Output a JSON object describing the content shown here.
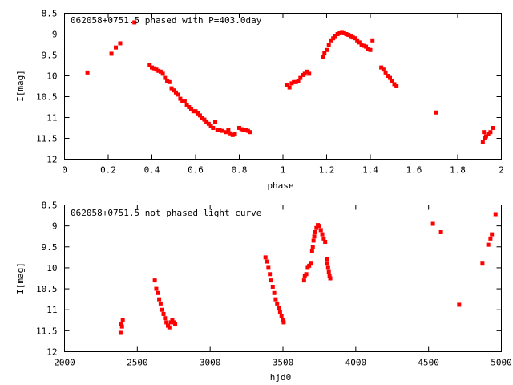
{
  "chart_data": [
    {
      "type": "scatter",
      "title": "062058+0751.5 phased with P=403.0day",
      "xlabel": "phase",
      "ylabel": "I[mag]",
      "xlim": [
        0,
        2
      ],
      "ylim": [
        8.5,
        12
      ],
      "y_inverted": true,
      "xticks": [
        "0",
        "0.2",
        "0.4",
        "0.6",
        "0.8",
        "1",
        "1.2",
        "1.4",
        "1.6",
        "1.8",
        "2"
      ],
      "yticks": [
        "8.5",
        "9",
        "9.5",
        "10",
        "10.5",
        "11",
        "11.5",
        "12"
      ],
      "grid": false,
      "color": "#ff0000",
      "series": [
        {
          "points": [
            [
              0.105,
              9.92
            ],
            [
              0.215,
              9.47
            ],
            [
              0.235,
              9.32
            ],
            [
              0.255,
              9.22
            ],
            [
              0.32,
              8.72
            ],
            [
              0.39,
              9.75
            ],
            [
              0.4,
              9.8
            ],
            [
              0.41,
              9.82
            ],
            [
              0.42,
              9.85
            ],
            [
              0.43,
              9.88
            ],
            [
              0.44,
              9.9
            ],
            [
              0.45,
              9.95
            ],
            [
              0.46,
              10.05
            ],
            [
              0.47,
              10.12
            ],
            [
              0.48,
              10.15
            ],
            [
              0.49,
              10.3
            ],
            [
              0.5,
              10.35
            ],
            [
              0.51,
              10.4
            ],
            [
              0.52,
              10.45
            ],
            [
              0.53,
              10.55
            ],
            [
              0.54,
              10.6
            ],
            [
              0.55,
              10.6
            ],
            [
              0.56,
              10.7
            ],
            [
              0.57,
              10.75
            ],
            [
              0.58,
              10.8
            ],
            [
              0.59,
              10.85
            ],
            [
              0.6,
              10.85
            ],
            [
              0.61,
              10.9
            ],
            [
              0.62,
              10.95
            ],
            [
              0.63,
              11.0
            ],
            [
              0.64,
              11.05
            ],
            [
              0.65,
              11.1
            ],
            [
              0.66,
              11.15
            ],
            [
              0.67,
              11.2
            ],
            [
              0.68,
              11.25
            ],
            [
              0.69,
              11.1
            ],
            [
              0.7,
              11.3
            ],
            [
              0.71,
              11.3
            ],
            [
              0.72,
              11.32
            ],
            [
              0.74,
              11.35
            ],
            [
              0.75,
              11.3
            ],
            [
              0.76,
              11.38
            ],
            [
              0.77,
              11.42
            ],
            [
              0.78,
              11.4
            ],
            [
              0.8,
              11.25
            ],
            [
              0.81,
              11.28
            ],
            [
              0.82,
              11.3
            ],
            [
              0.83,
              11.3
            ],
            [
              0.84,
              11.32
            ],
            [
              0.85,
              11.35
            ],
            [
              1.02,
              10.22
            ],
            [
              1.03,
              10.28
            ],
            [
              1.04,
              10.18
            ],
            [
              1.05,
              10.15
            ],
            [
              1.06,
              10.15
            ],
            [
              1.07,
              10.12
            ],
            [
              1.08,
              10.05
            ],
            [
              1.09,
              9.98
            ],
            [
              1.1,
              9.95
            ],
            [
              1.11,
              9.9
            ],
            [
              1.12,
              9.95
            ],
            [
              1.185,
              9.55
            ],
            [
              1.19,
              9.45
            ],
            [
              1.2,
              9.38
            ],
            [
              1.21,
              9.25
            ],
            [
              1.22,
              9.15
            ],
            [
              1.23,
              9.1
            ],
            [
              1.24,
              9.05
            ],
            [
              1.25,
              9.0
            ],
            [
              1.26,
              8.98
            ],
            [
              1.27,
              8.97
            ],
            [
              1.28,
              8.98
            ],
            [
              1.29,
              9.0
            ],
            [
              1.3,
              9.02
            ],
            [
              1.31,
              9.05
            ],
            [
              1.32,
              9.08
            ],
            [
              1.33,
              9.1
            ],
            [
              1.34,
              9.15
            ],
            [
              1.35,
              9.2
            ],
            [
              1.36,
              9.25
            ],
            [
              1.37,
              9.28
            ],
            [
              1.38,
              9.3
            ],
            [
              1.39,
              9.35
            ],
            [
              1.4,
              9.38
            ],
            [
              1.41,
              9.15
            ],
            [
              1.45,
              9.8
            ],
            [
              1.46,
              9.85
            ],
            [
              1.47,
              9.92
            ],
            [
              1.48,
              10.0
            ],
            [
              1.49,
              10.05
            ],
            [
              1.5,
              10.12
            ],
            [
              1.51,
              10.2
            ],
            [
              1.52,
              10.25
            ],
            [
              1.7,
              10.88
            ],
            [
              1.915,
              11.58
            ],
            [
              1.92,
              11.35
            ],
            [
              1.925,
              11.5
            ],
            [
              1.93,
              11.45
            ],
            [
              1.94,
              11.4
            ],
            [
              1.95,
              11.35
            ],
            [
              1.96,
              11.25
            ]
          ]
        }
      ]
    },
    {
      "type": "scatter",
      "title": "062058+0751.5 not phased light curve",
      "xlabel": "hjd0",
      "ylabel": "I[mag]",
      "xlim": [
        2000,
        5000
      ],
      "ylim": [
        8.5,
        12
      ],
      "y_inverted": true,
      "xticks": [
        "2000",
        "2500",
        "3000",
        "3500",
        "4000",
        "4500",
        "5000"
      ],
      "yticks": [
        "8.5",
        "9",
        "9.5",
        "10",
        "10.5",
        "11",
        "11.5",
        "12"
      ],
      "grid": false,
      "color": "#ff0000",
      "series": [
        {
          "points": [
            [
              2385,
              11.55
            ],
            [
              2390,
              11.35
            ],
            [
              2395,
              11.4
            ],
            [
              2400,
              11.25
            ],
            [
              2620,
              10.3
            ],
            [
              2630,
              10.5
            ],
            [
              2640,
              10.6
            ],
            [
              2650,
              10.75
            ],
            [
              2660,
              10.85
            ],
            [
              2670,
              11.0
            ],
            [
              2680,
              11.1
            ],
            [
              2690,
              11.2
            ],
            [
              2700,
              11.3
            ],
            [
              2710,
              11.38
            ],
            [
              2720,
              11.42
            ],
            [
              2730,
              11.3
            ],
            [
              2740,
              11.25
            ],
            [
              2750,
              11.3
            ],
            [
              2760,
              11.35
            ],
            [
              3380,
              9.75
            ],
            [
              3390,
              9.85
            ],
            [
              3400,
              10.0
            ],
            [
              3410,
              10.15
            ],
            [
              3420,
              10.3
            ],
            [
              3430,
              10.45
            ],
            [
              3440,
              10.6
            ],
            [
              3450,
              10.75
            ],
            [
              3460,
              10.85
            ],
            [
              3470,
              10.95
            ],
            [
              3480,
              11.05
            ],
            [
              3490,
              11.15
            ],
            [
              3500,
              11.25
            ],
            [
              3505,
              11.3
            ],
            [
              3645,
              10.3
            ],
            [
              3650,
              10.2
            ],
            [
              3660,
              10.15
            ],
            [
              3670,
              10.0
            ],
            [
              3680,
              9.95
            ],
            [
              3690,
              9.9
            ],
            [
              3700,
              9.6
            ],
            [
              3705,
              9.5
            ],
            [
              3710,
              9.35
            ],
            [
              3715,
              9.25
            ],
            [
              3720,
              9.15
            ],
            [
              3730,
              9.05
            ],
            [
              3740,
              8.98
            ],
            [
              3750,
              9.0
            ],
            [
              3760,
              9.1
            ],
            [
              3770,
              9.2
            ],
            [
              3780,
              9.3
            ],
            [
              3790,
              9.38
            ],
            [
              3800,
              9.8
            ],
            [
              3805,
              9.9
            ],
            [
              3810,
              10.0
            ],
            [
              3815,
              10.1
            ],
            [
              3820,
              10.2
            ],
            [
              3825,
              10.25
            ],
            [
              4530,
              8.95
            ],
            [
              4585,
              9.15
            ],
            [
              4710,
              10.88
            ],
            [
              4870,
              9.9
            ],
            [
              4910,
              9.45
            ],
            [
              4925,
              9.3
            ],
            [
              4935,
              9.2
            ],
            [
              4960,
              8.72
            ]
          ]
        }
      ]
    }
  ]
}
